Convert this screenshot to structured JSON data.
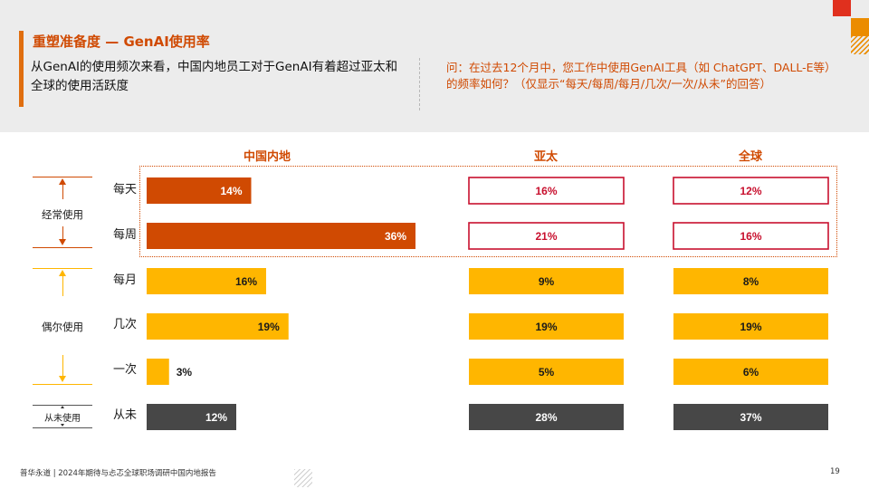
{
  "header": {
    "title": "重塑准备度 — GenAI使用率",
    "subtitle": "从GenAI的使用频次来看，中国内地员工对于GenAI有着超过亚太和全球的使用活跃度",
    "question": "问：在过去12个月中，您工作中使用GenAI工具（如 ChatGPT、DALL-E等）的频率如何？（仅显示“每天/每周/每月/几次/一次/从未”的回答）"
  },
  "groups": {
    "frequent": "经常使用",
    "occasional": "偶尔使用",
    "never": "从未使用"
  },
  "colors": {
    "accent": "#d04a02",
    "orange_bar": "#d04a02",
    "yellow_bar": "#ffb600",
    "dark_bar": "#474747",
    "outline_red": "#c8102e"
  },
  "chart_data": {
    "type": "bar",
    "orientation": "horizontal",
    "categories": [
      "每天",
      "每周",
      "每月",
      "几次",
      "一次",
      "从未"
    ],
    "series": [
      {
        "name": "中国内地",
        "values": [
          14,
          36,
          16,
          19,
          3,
          12
        ],
        "labels": [
          "14%",
          "36%",
          "16%",
          "19%",
          "3%",
          "12%"
        ]
      },
      {
        "name": "亚太",
        "values": [
          16,
          21,
          9,
          19,
          5,
          28
        ],
        "labels": [
          "16%",
          "21%",
          "9%",
          "19%",
          "5%",
          "28%"
        ]
      },
      {
        "name": "全球",
        "values": [
          12,
          16,
          8,
          19,
          6,
          37
        ],
        "labels": [
          "12%",
          "16%",
          "8%",
          "19%",
          "6%",
          "37%"
        ]
      }
    ],
    "unit": "%"
  },
  "footer": {
    "source": "普华永道 | 2024年期待与忐忑全球职场调研中国内地报告",
    "page": "19"
  }
}
